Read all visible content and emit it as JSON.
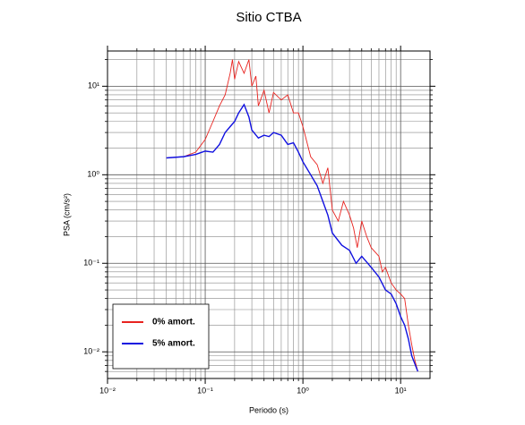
{
  "chart_data": {
    "type": "line",
    "title": "Sitio CTBA",
    "xlabel": "Periodo (s)",
    "ylabel": "PSA (cm/s²)",
    "xscale": "log",
    "yscale": "log",
    "grid": true,
    "minor_grid": true,
    "legend": "lower left",
    "xlim": [
      0.01,
      20
    ],
    "ylim": [
      0.005,
      25
    ],
    "xticks": [
      {
        "value": 0.01,
        "label": "10⁻²"
      },
      {
        "value": 0.1,
        "label": "10⁻¹"
      },
      {
        "value": 1,
        "label": "10⁰"
      },
      {
        "value": 10,
        "label": "10¹"
      }
    ],
    "yticks": [
      {
        "value": 0.01,
        "label": "10⁻²"
      },
      {
        "value": 0.1,
        "label": "10⁻¹"
      },
      {
        "value": 1,
        "label": "10⁰"
      },
      {
        "value": 10,
        "label": "10¹"
      }
    ],
    "series": [
      {
        "name": "0% amort.",
        "color": "#e8231f",
        "x": [
          0.04,
          0.06,
          0.08,
          0.1,
          0.12,
          0.14,
          0.16,
          0.18,
          0.19,
          0.2,
          0.22,
          0.25,
          0.28,
          0.3,
          0.33,
          0.35,
          0.4,
          0.45,
          0.5,
          0.6,
          0.7,
          0.8,
          0.9,
          1.0,
          1.2,
          1.4,
          1.6,
          1.8,
          2.0,
          2.3,
          2.6,
          3.0,
          3.3,
          3.6,
          4.0,
          4.5,
          5.0,
          6.0,
          6.5,
          7.0,
          8.0,
          9.0,
          10,
          11,
          12,
          13,
          14,
          15
        ],
        "values": [
          1.55,
          1.6,
          1.8,
          2.5,
          4,
          6,
          8,
          14,
          20,
          12,
          19,
          14,
          20,
          10,
          13,
          6,
          9,
          5,
          8.5,
          7,
          8,
          5,
          5,
          3.5,
          1.6,
          1.3,
          0.8,
          1.2,
          0.4,
          0.3,
          0.5,
          0.35,
          0.25,
          0.15,
          0.3,
          0.2,
          0.15,
          0.12,
          0.08,
          0.09,
          0.06,
          0.05,
          0.045,
          0.04,
          0.02,
          0.012,
          0.008,
          0.006
        ]
      },
      {
        "name": "5% amort.",
        "color": "#1010e0",
        "x": [
          0.04,
          0.06,
          0.08,
          0.1,
          0.12,
          0.14,
          0.16,
          0.18,
          0.2,
          0.22,
          0.25,
          0.28,
          0.3,
          0.35,
          0.4,
          0.45,
          0.5,
          0.6,
          0.7,
          0.8,
          0.9,
          1.0,
          1.2,
          1.4,
          1.6,
          1.8,
          2.0,
          2.5,
          3.0,
          3.5,
          4.0,
          5.0,
          6.0,
          7.0,
          8.0,
          9.0,
          10,
          11,
          12,
          13,
          15
        ],
        "values": [
          1.55,
          1.6,
          1.7,
          1.85,
          1.8,
          2.2,
          3.0,
          3.5,
          4.0,
          5.0,
          6.2,
          4.5,
          3.2,
          2.6,
          2.8,
          2.7,
          3.0,
          2.8,
          2.2,
          2.3,
          1.8,
          1.4,
          1.0,
          0.75,
          0.5,
          0.35,
          0.22,
          0.16,
          0.14,
          0.1,
          0.12,
          0.09,
          0.07,
          0.05,
          0.045,
          0.035,
          0.025,
          0.02,
          0.014,
          0.009,
          0.006
        ]
      }
    ]
  }
}
